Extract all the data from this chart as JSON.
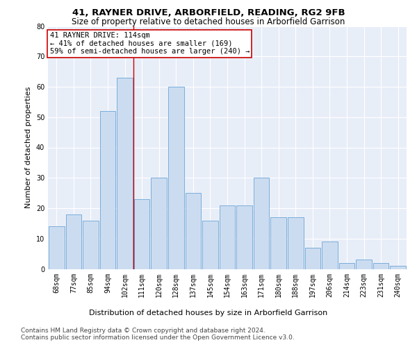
{
  "title": "41, RAYNER DRIVE, ARBORFIELD, READING, RG2 9FB",
  "subtitle": "Size of property relative to detached houses in Arborfield Garrison",
  "xlabel": "Distribution of detached houses by size in Arborfield Garrison",
  "ylabel": "Number of detached properties",
  "categories": [
    "68sqm",
    "77sqm",
    "85sqm",
    "94sqm",
    "102sqm",
    "111sqm",
    "120sqm",
    "128sqm",
    "137sqm",
    "145sqm",
    "154sqm",
    "163sqm",
    "171sqm",
    "180sqm",
    "188sqm",
    "197sqm",
    "206sqm",
    "214sqm",
    "223sqm",
    "231sqm",
    "240sqm"
  ],
  "values": [
    14,
    18,
    16,
    52,
    63,
    23,
    30,
    60,
    25,
    16,
    21,
    21,
    30,
    17,
    17,
    7,
    9,
    2,
    3,
    2,
    1
  ],
  "bar_color": "#ccdcf0",
  "bar_edge_color": "#7aaedb",
  "background_color": "#ffffff",
  "plot_bg_color": "#e8eef8",
  "grid_color": "#ffffff",
  "vline_x": 4.5,
  "vline_color": "#cc0000",
  "annotation_line1": "41 RAYNER DRIVE: 114sqm",
  "annotation_line2": "← 41% of detached houses are smaller (169)",
  "annotation_line3": "59% of semi-detached houses are larger (240) →",
  "annotation_box_color": "#ffffff",
  "annotation_box_edge": "#cc0000",
  "ylim": [
    0,
    80
  ],
  "yticks": [
    0,
    10,
    20,
    30,
    40,
    50,
    60,
    70,
    80
  ],
  "footer1": "Contains HM Land Registry data © Crown copyright and database right 2024.",
  "footer2": "Contains public sector information licensed under the Open Government Licence v3.0.",
  "title_fontsize": 9.5,
  "subtitle_fontsize": 8.5,
  "ylabel_fontsize": 8,
  "xlabel_fontsize": 8,
  "tick_fontsize": 7,
  "annot_fontsize": 7.5,
  "footer_fontsize": 6.5
}
